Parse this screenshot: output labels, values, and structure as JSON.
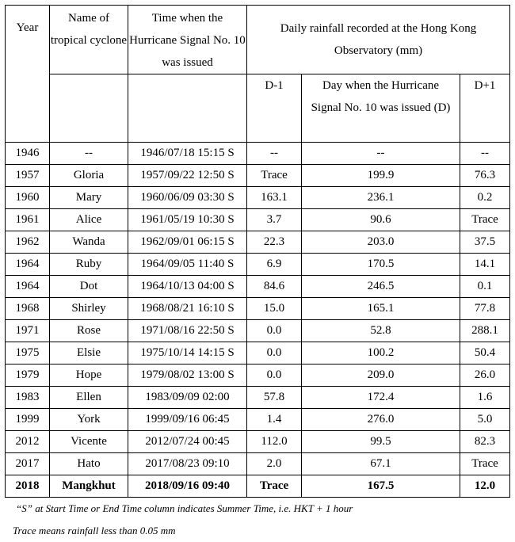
{
  "headers": {
    "year": "Year",
    "name": "Name of tropical cyclone",
    "time": "Time when the Hurricane Signal No. 10 was issued",
    "rainfall": "Daily rainfall recorded at the Hong Kong Observatory (mm)",
    "d_minus_1": "D-1",
    "day_of": "Day when the Hurricane Signal No. 10 was issued (D)",
    "d_plus_1": "D+1"
  },
  "rows": [
    {
      "year": "1946",
      "name": "--",
      "time": "1946/07/18 15:15 S",
      "d_minus_1": "--",
      "d": "--",
      "d_plus_1": "--",
      "bold": false
    },
    {
      "year": "1957",
      "name": "Gloria",
      "time": "1957/09/22 12:50 S",
      "d_minus_1": "Trace",
      "d": "199.9",
      "d_plus_1": "76.3",
      "bold": false
    },
    {
      "year": "1960",
      "name": "Mary",
      "time": "1960/06/09 03:30 S",
      "d_minus_1": "163.1",
      "d": "236.1",
      "d_plus_1": "0.2",
      "bold": false
    },
    {
      "year": "1961",
      "name": "Alice",
      "time": "1961/05/19 10:30 S",
      "d_minus_1": "3.7",
      "d": "90.6",
      "d_plus_1": "Trace",
      "bold": false
    },
    {
      "year": "1962",
      "name": "Wanda",
      "time": "1962/09/01 06:15 S",
      "d_minus_1": "22.3",
      "d": "203.0",
      "d_plus_1": "37.5",
      "bold": false
    },
    {
      "year": "1964",
      "name": "Ruby",
      "time": "1964/09/05 11:40 S",
      "d_minus_1": "6.9",
      "d": "170.5",
      "d_plus_1": "14.1",
      "bold": false
    },
    {
      "year": "1964",
      "name": "Dot",
      "time": "1964/10/13 04:00 S",
      "d_minus_1": "84.6",
      "d": "246.5",
      "d_plus_1": "0.1",
      "bold": false
    },
    {
      "year": "1968",
      "name": "Shirley",
      "time": "1968/08/21 16:10 S",
      "d_minus_1": "15.0",
      "d": "165.1",
      "d_plus_1": "77.8",
      "bold": false
    },
    {
      "year": "1971",
      "name": "Rose",
      "time": "1971/08/16 22:50 S",
      "d_minus_1": "0.0",
      "d": "52.8",
      "d_plus_1": "288.1",
      "bold": false
    },
    {
      "year": "1975",
      "name": "Elsie",
      "time": "1975/10/14 14:15 S",
      "d_minus_1": "0.0",
      "d": "100.2",
      "d_plus_1": "50.4",
      "bold": false
    },
    {
      "year": "1979",
      "name": "Hope",
      "time": "1979/08/02 13:00 S",
      "d_minus_1": "0.0",
      "d": "209.0",
      "d_plus_1": "26.0",
      "bold": false
    },
    {
      "year": "1983",
      "name": "Ellen",
      "time": "1983/09/09 02:00",
      "d_minus_1": "57.8",
      "d": "172.4",
      "d_plus_1": "1.6",
      "bold": false
    },
    {
      "year": "1999",
      "name": "York",
      "time": "1999/09/16 06:45",
      "d_minus_1": "1.4",
      "d": "276.0",
      "d_plus_1": "5.0",
      "bold": false
    },
    {
      "year": "2012",
      "name": "Vicente",
      "time": "2012/07/24 00:45",
      "d_minus_1": "112.0",
      "d": "99.5",
      "d_plus_1": "82.3",
      "bold": false
    },
    {
      "year": "2017",
      "name": "Hato",
      "time": "2017/08/23 09:10",
      "d_minus_1": "2.0",
      "d": "67.1",
      "d_plus_1": "Trace",
      "bold": false
    },
    {
      "year": "2018",
      "name": "Mangkhut",
      "time": "2018/09/16 09:40",
      "d_minus_1": "Trace",
      "d": "167.5",
      "d_plus_1": "12.0",
      "bold": true
    }
  ],
  "notes": {
    "summer_time": "“S” at Start Time or End Time column indicates Summer Time, i.e. HKT + 1 hour",
    "trace": "Trace means rainfall less than 0.05 mm"
  }
}
